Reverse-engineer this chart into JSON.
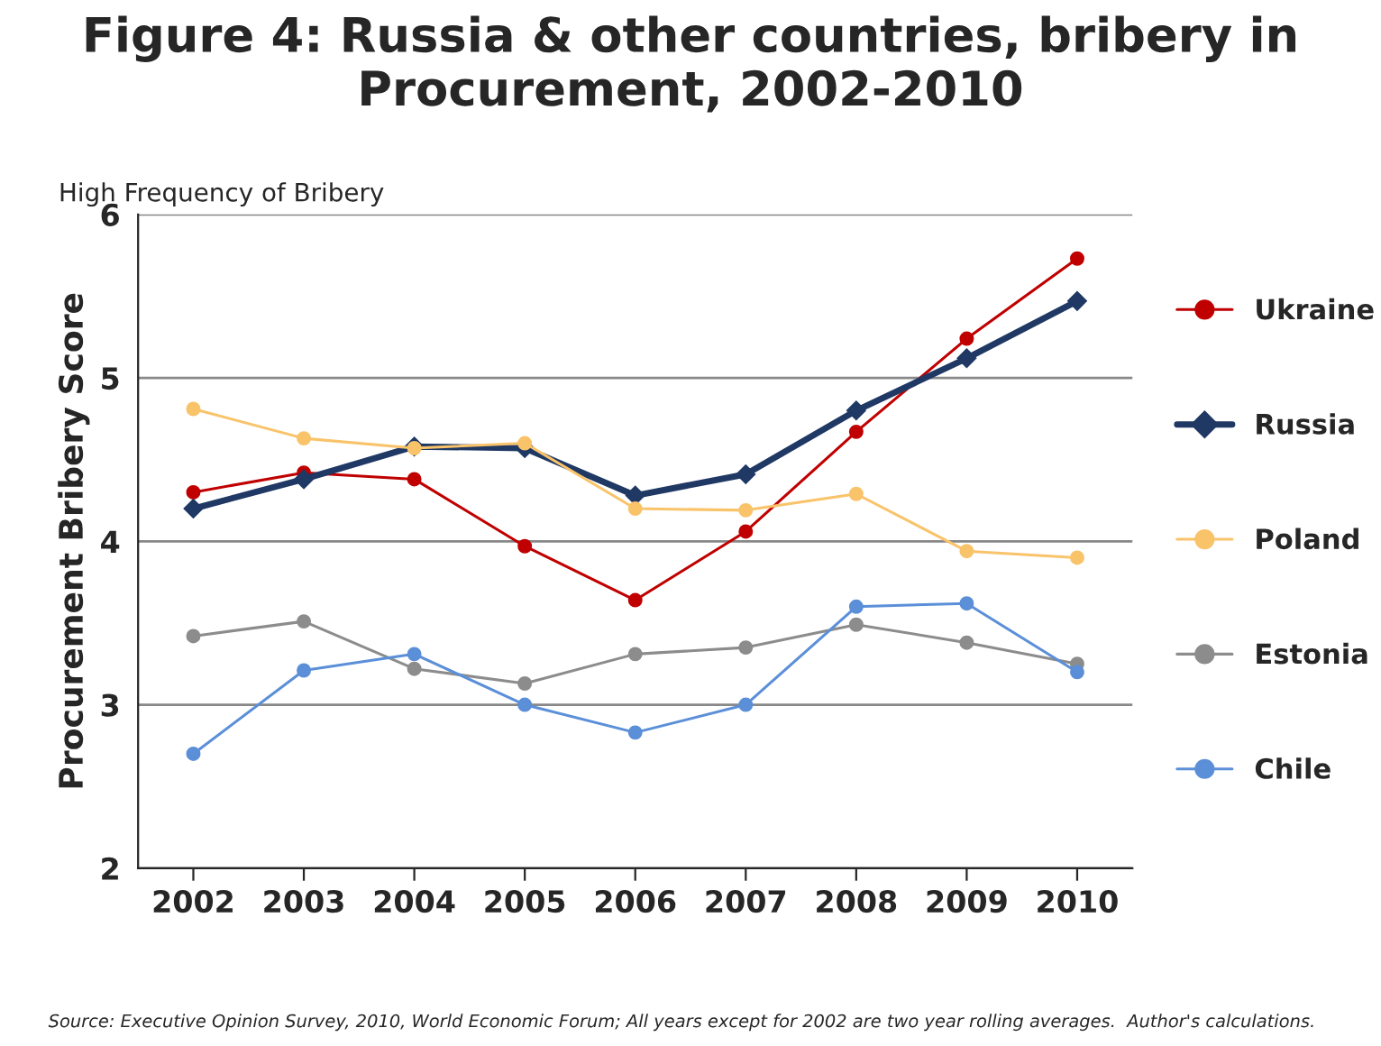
{
  "chart_data": {
    "type": "line",
    "title": "Figure 4: Russia & other countries, bribery in\nProcurement, 2002-2010",
    "ylabel": "Procurement Bribery Score",
    "annotations": [
      "High Frequency of Bribery",
      "Source: Executive Opinion Survey, 2010, World Economic Forum; All years except for 2002 are two year rolling averages.  Author's calculations."
    ],
    "categories": [
      "2002",
      "2003",
      "2004",
      "2005",
      "2006",
      "2007",
      "2008",
      "2009",
      "2010"
    ],
    "series": [
      {
        "name": "Ukraine",
        "color": "#c00000",
        "marker": "circle",
        "values": [
          4.3,
          4.42,
          4.38,
          3.97,
          3.64,
          4.06,
          4.67,
          5.24,
          5.73
        ]
      },
      {
        "name": "Russia",
        "color": "#1f3864",
        "marker": "diamond",
        "values": [
          4.2,
          4.38,
          4.58,
          4.57,
          4.28,
          4.41,
          4.8,
          5.12,
          5.47
        ]
      },
      {
        "name": "Poland",
        "color": "#f9c36a",
        "marker": "circle",
        "values": [
          4.81,
          4.63,
          4.57,
          4.6,
          4.2,
          4.19,
          4.29,
          3.94,
          3.9
        ]
      },
      {
        "name": "Estonia",
        "color": "#8c8c8c",
        "marker": "circle",
        "values": [
          3.42,
          3.51,
          3.22,
          3.13,
          3.31,
          3.35,
          3.49,
          3.38,
          3.25
        ]
      },
      {
        "name": "Chile",
        "color": "#5b8fd8",
        "marker": "circle",
        "values": [
          2.7,
          3.21,
          3.31,
          3.0,
          2.83,
          3.0,
          3.6,
          3.62,
          3.2
        ]
      }
    ],
    "ylim": [
      2,
      6
    ],
    "yticks": [
      2,
      3,
      4,
      5,
      6
    ],
    "grid": "y",
    "legend": "right"
  }
}
